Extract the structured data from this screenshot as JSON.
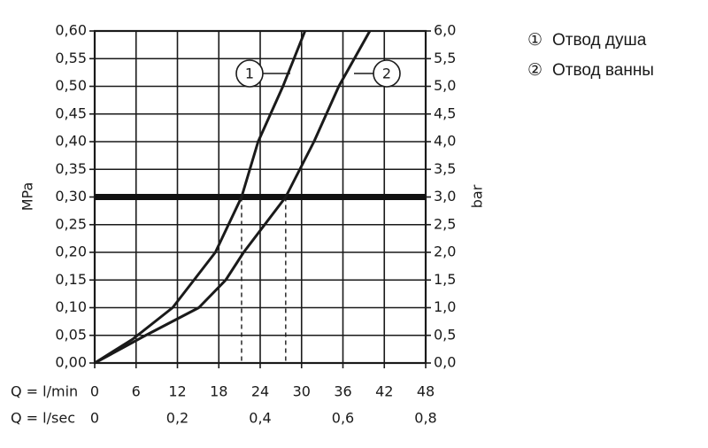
{
  "chart_data": {
    "type": "line",
    "xlabel": "Q = l/min",
    "x2label": "Q = l/sec",
    "ylabel": "MPa",
    "y2label": "bar",
    "xlim": [
      0,
      48
    ],
    "xticks": [
      0,
      6,
      12,
      18,
      24,
      30,
      36,
      42,
      48
    ],
    "x2lim": [
      0,
      0.8
    ],
    "x2ticks": [
      0,
      {
        "value": 0.2,
        "label": "0,2"
      },
      {
        "value": 0.4,
        "label": "0,4"
      },
      {
        "value": 0.6,
        "label": "0,6"
      },
      {
        "value": 0.8,
        "label": "0,8"
      }
    ],
    "ylim": [
      0,
      0.6
    ],
    "yticks": [
      {
        "value": 0,
        "label": "0,00"
      },
      {
        "value": 0.05,
        "label": "0,05"
      },
      {
        "value": 0.1,
        "label": "0,10"
      },
      {
        "value": 0.15,
        "label": "0,15"
      },
      {
        "value": 0.2,
        "label": "0,20"
      },
      {
        "value": 0.25,
        "label": "0,25"
      },
      {
        "value": 0.3,
        "label": "0,30"
      },
      {
        "value": 0.35,
        "label": "0,35"
      },
      {
        "value": 0.4,
        "label": "0,40"
      },
      {
        "value": 0.45,
        "label": "0,45"
      },
      {
        "value": 0.5,
        "label": "0,50"
      },
      {
        "value": 0.55,
        "label": "0,55"
      },
      {
        "value": 0.6,
        "label": "0,60"
      }
    ],
    "y2lim": [
      0,
      6
    ],
    "y2ticks": [
      {
        "value": 0,
        "label": "0,0"
      },
      {
        "value": 0.5,
        "label": "0,5"
      },
      {
        "value": 1,
        "label": "1,0"
      },
      {
        "value": 1.5,
        "label": "1,5"
      },
      {
        "value": 2,
        "label": "2,0"
      },
      {
        "value": 2.5,
        "label": "2,5"
      },
      {
        "value": 3,
        "label": "3,0"
      },
      {
        "value": 3.5,
        "label": "3,5"
      },
      {
        "value": 4,
        "label": "4,0"
      },
      {
        "value": 4.5,
        "label": "4,5"
      },
      {
        "value": 5,
        "label": "5,0"
      },
      {
        "value": 5.5,
        "label": "5,5"
      },
      {
        "value": 6,
        "label": "6,0"
      }
    ],
    "grid": true,
    "reference_line": 0.3,
    "drop_lines": [
      21.3,
      27.7
    ],
    "series": [
      {
        "name": "Отвод душа",
        "symbol": "①",
        "marker_label": "1",
        "color": "#1a1a1a",
        "x": [
          0,
          5.5,
          11.3,
          17.5,
          21.3,
          23.7,
          27.3,
          30.5
        ],
        "values": [
          0,
          0.043,
          0.1,
          0.2,
          0.3,
          0.4,
          0.5,
          0.6
        ]
      },
      {
        "name": "Отвод ванны",
        "symbol": "②",
        "marker_label": "2",
        "color": "#1a1a1a",
        "x": [
          0,
          7.4,
          15.1,
          19.0,
          21.6,
          27.7,
          31.8,
          35.4,
          39.9
        ],
        "values": [
          0,
          0.05,
          0.1,
          0.15,
          0.2,
          0.3,
          0.4,
          0.5,
          0.6
        ]
      }
    ]
  }
}
